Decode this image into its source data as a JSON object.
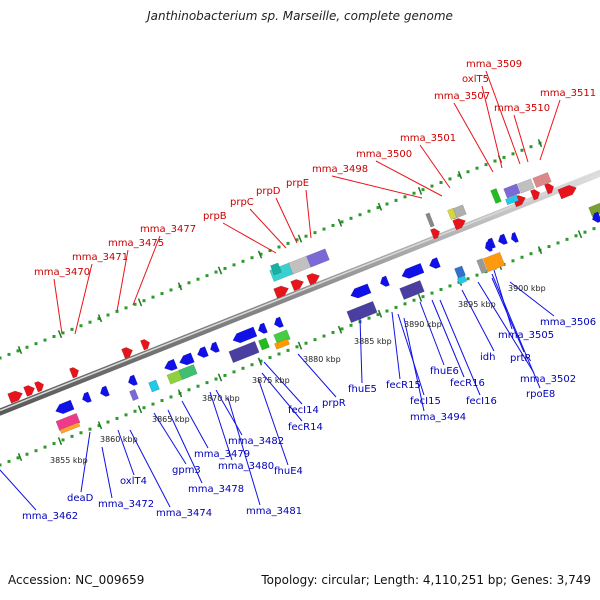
{
  "title": "Janthinobacterium sp. Marseille, complete genome",
  "footer": {
    "accession": "Accession: NC_009659",
    "summary": "Topology: circular; Length: 4,110,251 bp; Genes: 3,749"
  },
  "colors": {
    "forward_gene": "#e8141b",
    "reverse_gene": "#1010e8",
    "forward_label": "#cc0000",
    "reverse_label": "#0000bb",
    "backbone": "#8c8c8c",
    "tick_dot": "#2e9a2e"
  },
  "ticks": [
    {
      "label": "3855 kbp"
    },
    {
      "label": "3860 kbp"
    },
    {
      "label": "3865 kbp"
    },
    {
      "label": "3870 kbp"
    },
    {
      "label": "3875 kbp"
    },
    {
      "label": "3880 kbp"
    },
    {
      "label": "3885 kbp"
    },
    {
      "label": "3890 kbp"
    },
    {
      "label": "3895 kbp"
    },
    {
      "label": "3900 kbp"
    }
  ],
  "forward_labels": [
    {
      "text": "mma_3470"
    },
    {
      "text": "mma_3471"
    },
    {
      "text": "mma_3475"
    },
    {
      "text": "mma_3477"
    },
    {
      "text": "prpB"
    },
    {
      "text": "prpC"
    },
    {
      "text": "prpD"
    },
    {
      "text": "prpE"
    },
    {
      "text": "mma_3498"
    },
    {
      "text": "mma_3500"
    },
    {
      "text": "mma_3501"
    },
    {
      "text": "mma_3507"
    },
    {
      "text": "oxlT5"
    },
    {
      "text": "mma_3509"
    },
    {
      "text": "mma_3510"
    },
    {
      "text": "mma_3511"
    }
  ],
  "reverse_labels": [
    {
      "text": "mma_3462"
    },
    {
      "text": "deaD"
    },
    {
      "text": "mma_3472"
    },
    {
      "text": "oxlT4"
    },
    {
      "text": "mma_3474"
    },
    {
      "text": "gpm3"
    },
    {
      "text": "mma_3478"
    },
    {
      "text": "mma_3479"
    },
    {
      "text": "mma_3480"
    },
    {
      "text": "mma_3481"
    },
    {
      "text": "mma_3482"
    },
    {
      "text": "fhuE4"
    },
    {
      "text": "fecR14"
    },
    {
      "text": "fecI14"
    },
    {
      "text": "prpR"
    },
    {
      "text": "fhuE5"
    },
    {
      "text": "fecR15"
    },
    {
      "text": "fecI15"
    },
    {
      "text": "mma_3494"
    },
    {
      "text": "fhuE6"
    },
    {
      "text": "fecR16"
    },
    {
      "text": "fecI16"
    },
    {
      "text": "idh"
    },
    {
      "text": "mma_3502"
    },
    {
      "text": "rpoE8"
    },
    {
      "text": "prtR"
    },
    {
      "text": "mma_3505"
    },
    {
      "text": "mma_3506"
    }
  ]
}
